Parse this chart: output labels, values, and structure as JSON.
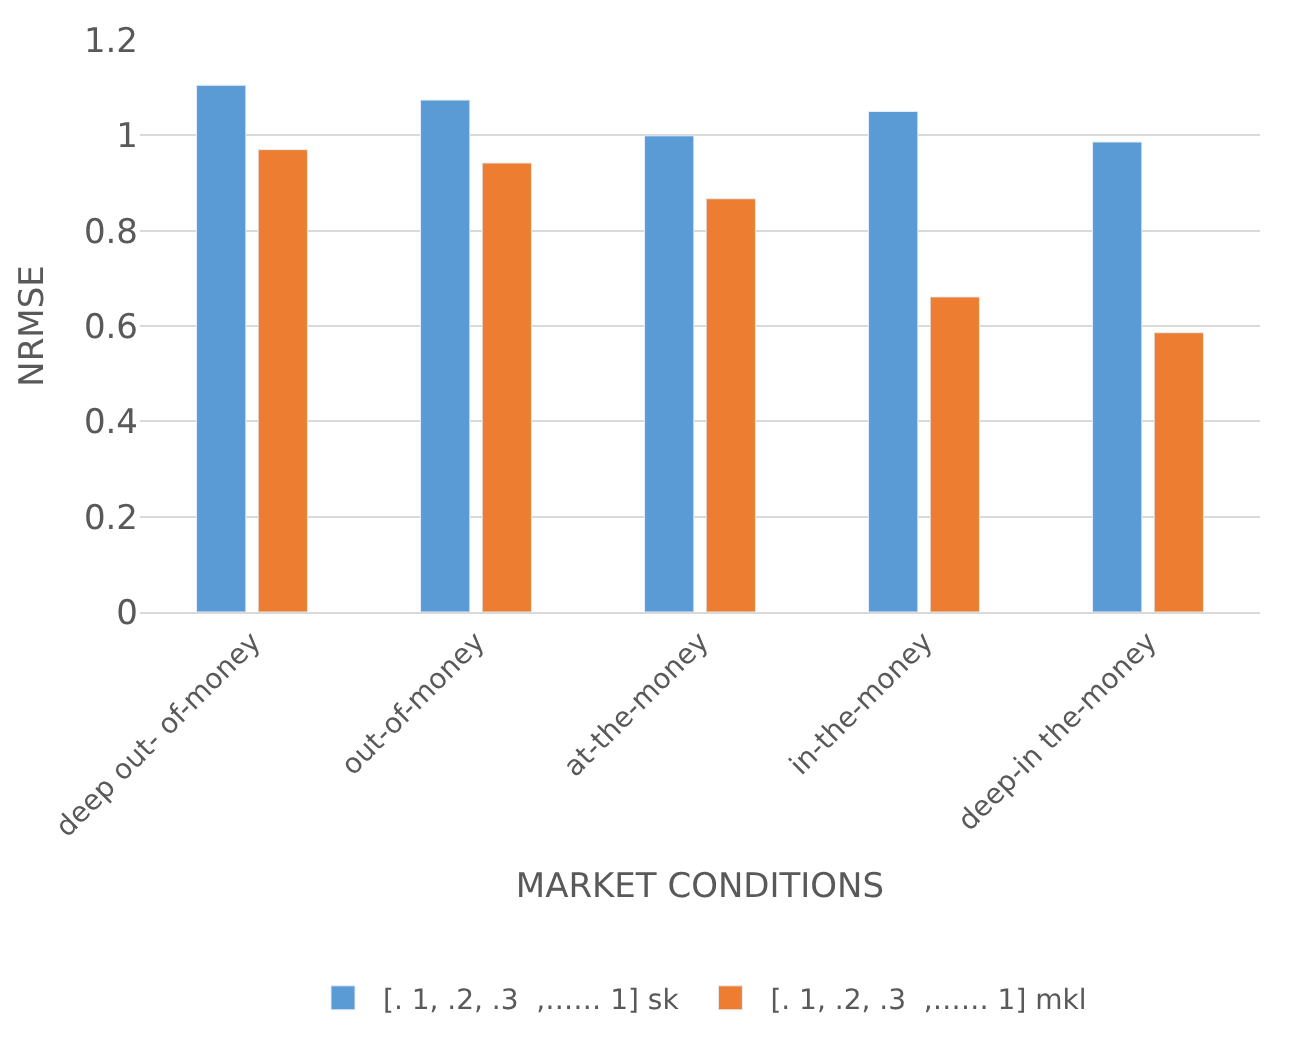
{
  "chart_data": {
    "type": "bar",
    "xlabel": "MARKET CONDITIONS",
    "ylabel": "NRMSE",
    "categories": [
      "deep out- of-money",
      "out-of-money",
      "at-the-money",
      "in-the-money",
      "deep-in the-money"
    ],
    "series": [
      {
        "name": "[. 1, .2, .3  ,…… 1] sk",
        "color": "#5b9bd5",
        "values": [
          1.105,
          1.074,
          0.999,
          1.05,
          0.986
        ]
      },
      {
        "name": "[. 1, .2, .3  ,…… 1] mkl",
        "color": "#ed7d31",
        "values": [
          0.97,
          0.942,
          0.867,
          0.661,
          0.586
        ]
      }
    ],
    "ylim": [
      0,
      1.2
    ],
    "yticks": [
      0,
      0.2,
      0.4,
      0.6,
      0.8,
      1,
      1.2
    ],
    "grid": "y",
    "legend": "bottom"
  }
}
